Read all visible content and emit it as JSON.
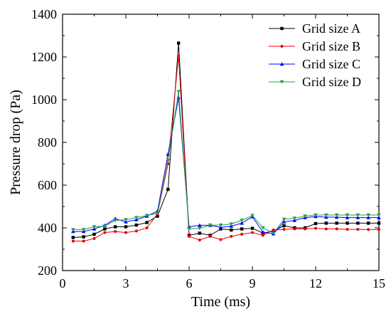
{
  "chart_data": {
    "type": "line",
    "xlabel": "Time (ms)",
    "ylabel": "Pressure drop (Pa)",
    "xlim": [
      0,
      15
    ],
    "ylim": [
      200,
      1400
    ],
    "xticks": [
      0,
      3,
      6,
      9,
      12,
      15
    ],
    "yticks": [
      200,
      400,
      600,
      800,
      1000,
      1200,
      1400
    ],
    "grid": false,
    "legend_position": "top-right",
    "series": [
      {
        "name": "Grid size A",
        "color": "#000000",
        "marker": "square",
        "x": [
          0.5,
          1,
          1.5,
          2,
          2.5,
          3,
          3.5,
          4,
          4.5,
          5,
          5.5,
          6,
          6.5,
          7,
          7.5,
          8,
          8.5,
          9,
          9.5,
          10,
          10.5,
          11,
          11.5,
          12,
          12.5,
          13,
          13.5,
          14,
          14.5,
          15
        ],
        "y": [
          355,
          358,
          370,
          395,
          405,
          405,
          413,
          425,
          455,
          580,
          1265,
          365,
          375,
          365,
          395,
          390,
          395,
          398,
          375,
          385,
          410,
          400,
          400,
          420,
          422,
          422,
          422,
          422,
          422,
          422
        ]
      },
      {
        "name": "Grid size B",
        "color": "#e8000b",
        "marker": "dot",
        "x": [
          0.5,
          1,
          1.5,
          2,
          2.5,
          3,
          3.5,
          4,
          4.5,
          5,
          5.5,
          6,
          6.5,
          7,
          7.5,
          8,
          8.5,
          9,
          9.5,
          10,
          10.5,
          11,
          11.5,
          12,
          12.5,
          13,
          13.5,
          14,
          14.5,
          15
        ],
        "y": [
          338,
          338,
          350,
          378,
          383,
          378,
          385,
          400,
          465,
          700,
          1205,
          360,
          343,
          360,
          345,
          360,
          370,
          378,
          365,
          390,
          393,
          395,
          395,
          398,
          395,
          395,
          393,
          393,
          392,
          392
        ]
      },
      {
        "name": "Grid size C",
        "color": "#0000ff",
        "marker": "triangle-up",
        "x": [
          0.5,
          1,
          1.5,
          2,
          2.5,
          3,
          3.5,
          4,
          4.5,
          5,
          5.5,
          6,
          6.5,
          7,
          7.5,
          8,
          8.5,
          9,
          9.5,
          10,
          10.5,
          11,
          11.5,
          12,
          12.5,
          13,
          13.5,
          14,
          14.5,
          15
        ],
        "y": [
          383,
          383,
          395,
          412,
          443,
          428,
          438,
          455,
          478,
          745,
          1010,
          405,
          412,
          412,
          402,
          408,
          422,
          452,
          380,
          372,
          428,
          435,
          448,
          453,
          450,
          450,
          448,
          448,
          448,
          448
        ]
      },
      {
        "name": "Grid size D",
        "color": "#22a04b",
        "marker": "triangle-down",
        "x": [
          0.5,
          1,
          1.5,
          2,
          2.5,
          3,
          3.5,
          4,
          4.5,
          5,
          5.5,
          6,
          6.5,
          7,
          7.5,
          8,
          8.5,
          9,
          9.5,
          10,
          10.5,
          11,
          11.5,
          12,
          12.5,
          13,
          13.5,
          14,
          14.5,
          15
        ],
        "y": [
          392,
          392,
          405,
          408,
          435,
          438,
          448,
          458,
          468,
          715,
          1038,
          395,
          398,
          413,
          413,
          418,
          435,
          458,
          400,
          375,
          440,
          445,
          455,
          460,
          460,
          460,
          460,
          460,
          460,
          460
        ]
      }
    ]
  }
}
